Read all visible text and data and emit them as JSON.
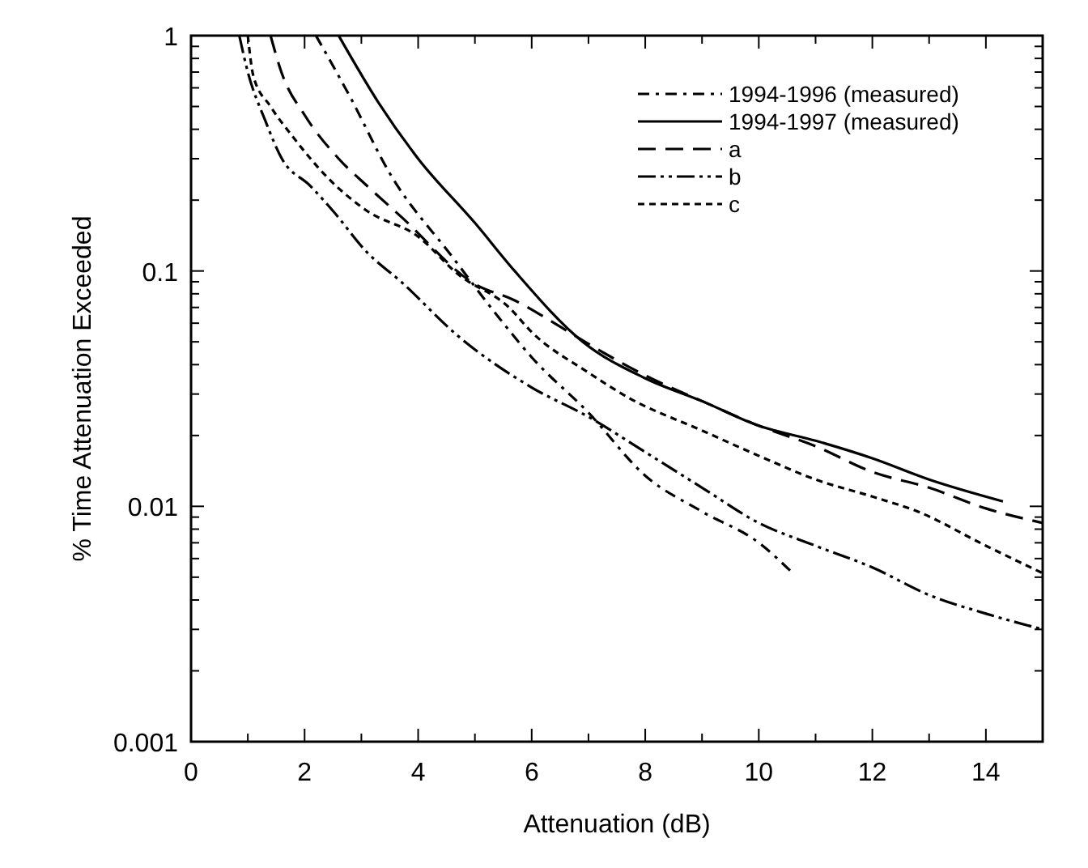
{
  "chart_data": {
    "type": "line",
    "xlabel": "Attenuation (dB)",
    "ylabel": "% Time Attenuation Exceeded",
    "log": "y",
    "grid": false,
    "legend": "top right",
    "marker": "none",
    "xlim": [
      0,
      15
    ],
    "xticks": [
      0,
      {
        "value": 1,
        "label": null
      },
      2,
      {
        "value": 3,
        "label": null
      },
      4,
      {
        "value": 5,
        "label": null
      },
      6,
      {
        "value": 7,
        "label": null
      },
      8,
      {
        "value": 9,
        "label": null
      },
      10,
      {
        "value": 11,
        "label": null
      },
      12,
      {
        "value": 13,
        "label": null
      },
      14
    ],
    "ylim": [
      0.001,
      1
    ],
    "yticks": [
      0.001,
      {
        "value": 0.002,
        "label": null
      },
      {
        "value": 0.003,
        "label": null
      },
      {
        "value": 0.004,
        "label": null
      },
      {
        "value": 0.005,
        "label": null
      },
      {
        "value": 0.006,
        "label": null
      },
      {
        "value": 0.007,
        "label": null
      },
      {
        "value": 0.008,
        "label": null
      },
      {
        "value": 0.009,
        "label": null
      },
      0.01,
      {
        "value": 0.02,
        "label": null
      },
      {
        "value": 0.03,
        "label": null
      },
      {
        "value": 0.04,
        "label": null
      },
      {
        "value": 0.05,
        "label": null
      },
      {
        "value": 0.06,
        "label": null
      },
      {
        "value": 0.07,
        "label": null
      },
      {
        "value": 0.08,
        "label": null
      },
      {
        "value": 0.09,
        "label": null
      },
      0.1,
      {
        "value": 0.2,
        "label": null
      },
      {
        "value": 0.3,
        "label": null
      },
      {
        "value": 0.4,
        "label": null
      },
      {
        "value": 0.5,
        "label": null
      },
      {
        "value": 0.6,
        "label": null
      },
      {
        "value": 0.7,
        "label": null
      },
      {
        "value": 0.8,
        "label": null
      },
      {
        "value": 0.9,
        "label": null
      },
      1
    ],
    "series": [
      {
        "name": "1994-1996 (measured)",
        "color": "#000000",
        "line_style": "dashdot",
        "x": [
          2.2,
          2.8,
          3.5,
          4.6,
          5.5,
          6,
          7,
          8,
          9,
          10,
          10.6
        ],
        "values": [
          1,
          0.55,
          0.26,
          0.115,
          0.06,
          0.043,
          0.025,
          0.0135,
          0.0095,
          0.007,
          0.0052
        ]
      },
      {
        "name": "1994-1997 (measured)",
        "color": "#000000",
        "line_style": "solid",
        "x": [
          2.6,
          3.3,
          4,
          5,
          5.7,
          6.9,
          8,
          9,
          10,
          11,
          12,
          13,
          14.3
        ],
        "values": [
          1,
          0.52,
          0.3,
          0.16,
          0.1,
          0.05,
          0.035,
          0.028,
          0.022,
          0.019,
          0.016,
          0.013,
          0.0105
        ]
      },
      {
        "name": "a",
        "color": "#000000",
        "line_style": "dashed",
        "x": [
          1.4,
          1.6,
          2,
          2.6,
          3.1,
          3.7,
          5,
          5.7,
          6.5,
          7,
          8,
          9,
          10,
          11,
          12,
          13,
          14,
          15
        ],
        "values": [
          1,
          0.69,
          0.46,
          0.3,
          0.23,
          0.17,
          0.088,
          0.075,
          0.058,
          0.049,
          0.036,
          0.028,
          0.022,
          0.018,
          0.014,
          0.012,
          0.0098,
          0.0085
        ]
      },
      {
        "name": "b",
        "color": "#000000",
        "line_style": "longdashdot",
        "x": [
          0.85,
          1,
          1.3,
          1.6,
          2.1,
          2.5,
          3.1,
          3.7,
          4.7,
          6,
          7,
          8,
          9,
          10,
          11,
          12,
          13,
          14,
          15
        ],
        "values": [
          1,
          0.7,
          0.44,
          0.3,
          0.23,
          0.18,
          0.12,
          0.09,
          0.053,
          0.032,
          0.024,
          0.017,
          0.012,
          0.0085,
          0.0068,
          0.0055,
          0.0042,
          0.0035,
          0.003
        ]
      },
      {
        "name": "c",
        "color": "#000000",
        "line_style": "dotted",
        "x": [
          1,
          1.1,
          1.4,
          1.8,
          2.4,
          3.1,
          4,
          4.7,
          5.6,
          6,
          7,
          7.7,
          9,
          10.1,
          11,
          12,
          12.8,
          14,
          15
        ],
        "values": [
          1,
          0.67,
          0.5,
          0.37,
          0.25,
          0.18,
          0.14,
          0.097,
          0.07,
          0.055,
          0.037,
          0.029,
          0.021,
          0.016,
          0.013,
          0.011,
          0.0095,
          0.0068,
          0.0052
        ]
      }
    ]
  }
}
